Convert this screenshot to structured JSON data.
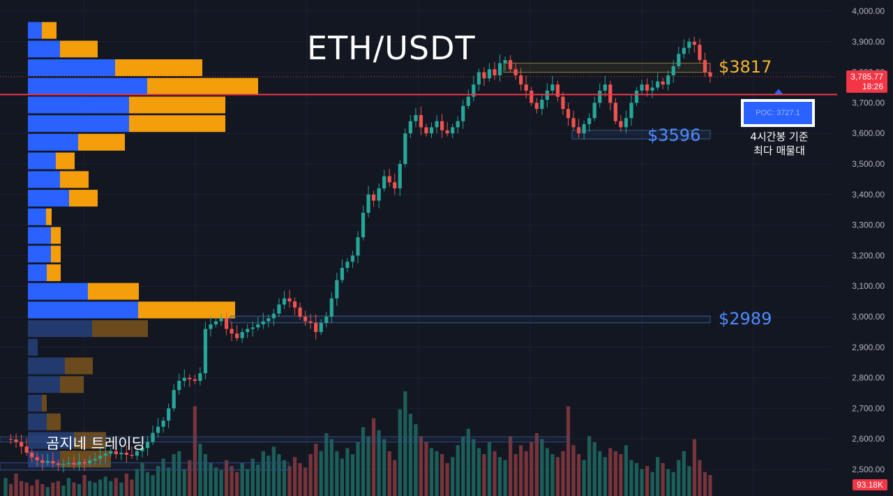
{
  "title": "ETH/USDT",
  "colors": {
    "up": "#26a69a",
    "down": "#ef5350",
    "profile_blue": "#2962ff",
    "profile_orange": "#f59e0b",
    "poc_line": "#f23645",
    "annotation_gold": "#f5b52e",
    "annotation_blue": "#4d8bff"
  },
  "price_tag": {
    "price": "3,785.77",
    "countdown": "18:26"
  },
  "volume_tag": "93.18K",
  "annotations": {
    "resistance": "$3817",
    "support_upper": "$3596",
    "support_lower": "$2989"
  },
  "poc": {
    "label": "POC: 3727.1",
    "note_line1": "4시간봉 기준",
    "note_line2": "최다 매물대"
  },
  "watermark": "곰지네 트레이딩",
  "chart_data": {
    "type": "candlestick",
    "title": "ETH/USDT",
    "ylim": [
      2460,
      4020
    ],
    "y_ticks": [
      "4,000.00",
      "3,900.00",
      "3,800.00",
      "3,700.00",
      "3,600.00",
      "3,500.00",
      "3,400.00",
      "3,300.00",
      "3,200.00",
      "3,100.00",
      "3,000.00",
      "2,900.00",
      "2,800.00",
      "2,700.00",
      "2,600.00",
      "2,500.00"
    ],
    "y_tick_values": [
      4000,
      3900,
      3800,
      3700,
      3600,
      3500,
      3400,
      3300,
      3200,
      3100,
      3000,
      2900,
      2800,
      2700,
      2600,
      2500
    ],
    "last_price": 3785.77,
    "poc_price": 3727.1,
    "levels": [
      3817,
      3596,
      2989
    ],
    "volume_profile": [
      {
        "price": 3937,
        "buy": 20,
        "sell": 21
      },
      {
        "price": 3876,
        "buy": 46,
        "sell": 54
      },
      {
        "price": 3815,
        "buy": 125,
        "sell": 125
      },
      {
        "price": 3754,
        "buy": 171,
        "sell": 159
      },
      {
        "price": 3693,
        "buy": 145,
        "sell": 138
      },
      {
        "price": 3632,
        "buy": 145,
        "sell": 138
      },
      {
        "price": 3571,
        "buy": 72,
        "sell": 67
      },
      {
        "price": 3510,
        "buy": 40,
        "sell": 27
      },
      {
        "price": 3449,
        "buy": 46,
        "sell": 41
      },
      {
        "price": 3388,
        "buy": 59,
        "sell": 41
      },
      {
        "price": 3327,
        "buy": 26,
        "sell": 8
      },
      {
        "price": 3266,
        "buy": 33,
        "sell": 14
      },
      {
        "price": 3205,
        "buy": 33,
        "sell": 14
      },
      {
        "price": 3144,
        "buy": 27,
        "sell": 20
      },
      {
        "price": 3083,
        "buy": 86,
        "sell": 73
      },
      {
        "price": 3022,
        "buy": 158,
        "sell": 139
      },
      {
        "price": 2961,
        "buy": 92,
        "sell": 80
      },
      {
        "price": 2900,
        "buy": 14,
        "sell": 0
      },
      {
        "price": 2839,
        "buy": 53,
        "sell": 40
      },
      {
        "price": 2778,
        "buy": 46,
        "sell": 34
      },
      {
        "price": 2717,
        "buy": 20,
        "sell": 7
      },
      {
        "price": 2656,
        "buy": 27,
        "sell": 20
      },
      {
        "price": 2595,
        "buy": 66,
        "sell": 46
      },
      {
        "price": 2534,
        "buy": 46,
        "sell": 73
      }
    ],
    "price_path": [
      2600,
      2598,
      2590,
      2575,
      2555,
      2540,
      2530,
      2522,
      2528,
      2520,
      2515,
      2518,
      2522,
      2516,
      2525,
      2520,
      2530,
      2535,
      2545,
      2552,
      2560,
      2550,
      2555,
      2548,
      2545,
      2560,
      2570,
      2590,
      2620,
      2640,
      2660,
      2700,
      2760,
      2790,
      2800,
      2795,
      2790,
      2815,
      2960,
      2975,
      2985,
      2995,
      2960,
      2945,
      2930,
      2950,
      2960,
      2965,
      2975,
      2985,
      2995,
      3010,
      3040,
      3060,
      3050,
      3030,
      3000,
      2985,
      2980,
      2950,
      2980,
      3000,
      3060,
      3120,
      3160,
      3180,
      3200,
      3260,
      3340,
      3400,
      3380,
      3420,
      3460,
      3440,
      3420,
      3500,
      3600,
      3640,
      3660,
      3620,
      3600,
      3620,
      3640,
      3610,
      3600,
      3620,
      3640,
      3690,
      3720,
      3760,
      3800,
      3780,
      3810,
      3790,
      3830,
      3840,
      3810,
      3790,
      3760,
      3740,
      3700,
      3680,
      3710,
      3740,
      3760,
      3720,
      3680,
      3650,
      3620,
      3600,
      3630,
      3650,
      3700,
      3740,
      3760,
      3700,
      3640,
      3620,
      3650,
      3700,
      3740,
      3760,
      3740,
      3750,
      3770,
      3760,
      3790,
      3820,
      3860,
      3880,
      3900,
      3890,
      3840,
      3800,
      3786
    ],
    "volumes": [
      12,
      8,
      15,
      10,
      9,
      7,
      11,
      8,
      6,
      9,
      10,
      7,
      12,
      9,
      8,
      14,
      10,
      9,
      11,
      13,
      10,
      12,
      9,
      15,
      11,
      18,
      22,
      16,
      14,
      20,
      25,
      19,
      28,
      30,
      18,
      24,
      60,
      35,
      28,
      22,
      19,
      17,
      24,
      20,
      16,
      22,
      18,
      25,
      21,
      30,
      27,
      33,
      28,
      24,
      20,
      26,
      22,
      19,
      28,
      35,
      30,
      42,
      38,
      30,
      25,
      32,
      28,
      36,
      46,
      40,
      52,
      44,
      38,
      30,
      24,
      58,
      70,
      55,
      48,
      40,
      36,
      32,
      30,
      28,
      22,
      26,
      34,
      40,
      45,
      38,
      32,
      28,
      36,
      30,
      26,
      24,
      40,
      28,
      34,
      30,
      36,
      42,
      38,
      32,
      28,
      26,
      30,
      60,
      34,
      28,
      24,
      40,
      36,
      30,
      26,
      32,
      30,
      28,
      34,
      24,
      22,
      18,
      20,
      16,
      26,
      22,
      18,
      16,
      24,
      30,
      20,
      38,
      24,
      16,
      14
    ]
  }
}
